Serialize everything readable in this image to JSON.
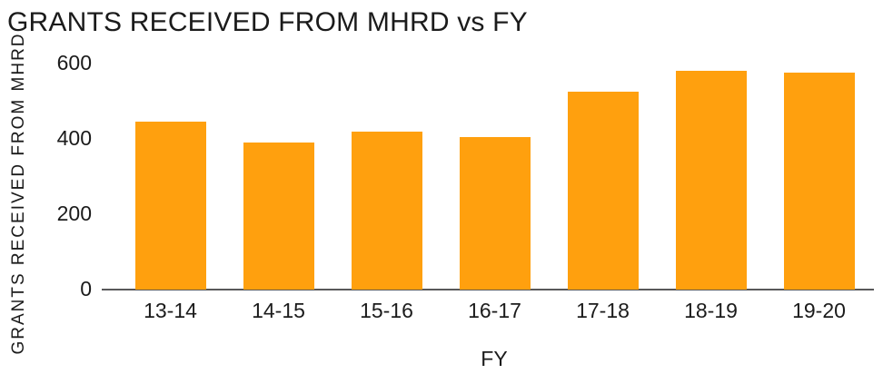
{
  "chart_data": {
    "type": "bar",
    "title": "GRANTS RECEIVED FROM MHRD vs FY",
    "xlabel": "FY",
    "ylabel": "GRANTS RECEIVED FROM MHRD",
    "categories": [
      "13-14",
      "14-15",
      "15-16",
      "16-17",
      "17-18",
      "18-19",
      "19-20"
    ],
    "values": [
      445,
      390,
      420,
      405,
      525,
      580,
      575
    ],
    "ylim": [
      0,
      600
    ],
    "yticks": [
      0,
      200,
      400,
      600
    ],
    "grid": false,
    "legend_position": "none",
    "bar_color": "#FFA00E",
    "axis_line_color": "#58585A",
    "text_color": "#1B1B1B"
  }
}
